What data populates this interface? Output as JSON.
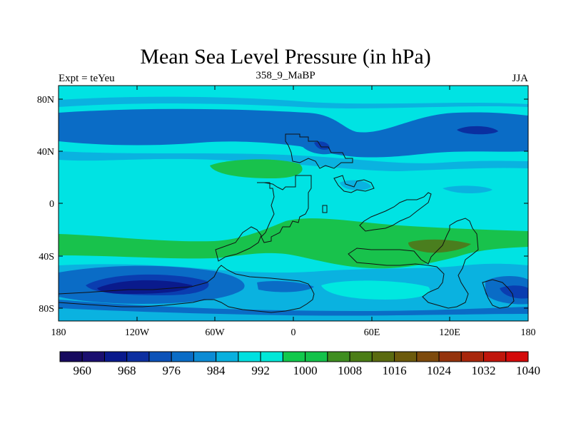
{
  "title": "Mean Sea Level Pressure (in hPa)",
  "left_string": "Expt = teYeu",
  "center_string": "358_9_MaBP",
  "right_string": "JJA",
  "lat_labels": [
    "80N",
    "40N",
    "0",
    "40S",
    "80S"
  ],
  "lon_labels": [
    "180",
    "120W",
    "60W",
    "0",
    "60E",
    "120E",
    "180"
  ],
  "colorbar": {
    "colors": [
      "#170a5e",
      "#1b0f6f",
      "#0a1a8c",
      "#0d2fa0",
      "#0c52b8",
      "#0a6cc6",
      "#0c8bd4",
      "#09b0de",
      "#00e0e0",
      "#01e8d8",
      "#11c94c",
      "#13c24a",
      "#3f8e20",
      "#4b7d16",
      "#5a6a10",
      "#6c5a0c",
      "#7d4a0c",
      "#94330c",
      "#a8270c",
      "#c0160c",
      "#d40a0a"
    ],
    "tick_labels": [
      "960",
      "968",
      "976",
      "984",
      "992",
      "1000",
      "1008",
      "1016",
      "1024",
      "1032",
      "1040"
    ]
  },
  "colors": {
    "cyan_light": "#00e3e3",
    "cyan_mid": "#0ab2e0",
    "blue_mid": "#0a6cc6",
    "blue_deep": "#0a3db0",
    "navy": "#0a1a8c",
    "green": "#18c24c",
    "olive": "#4a7e1e"
  }
}
